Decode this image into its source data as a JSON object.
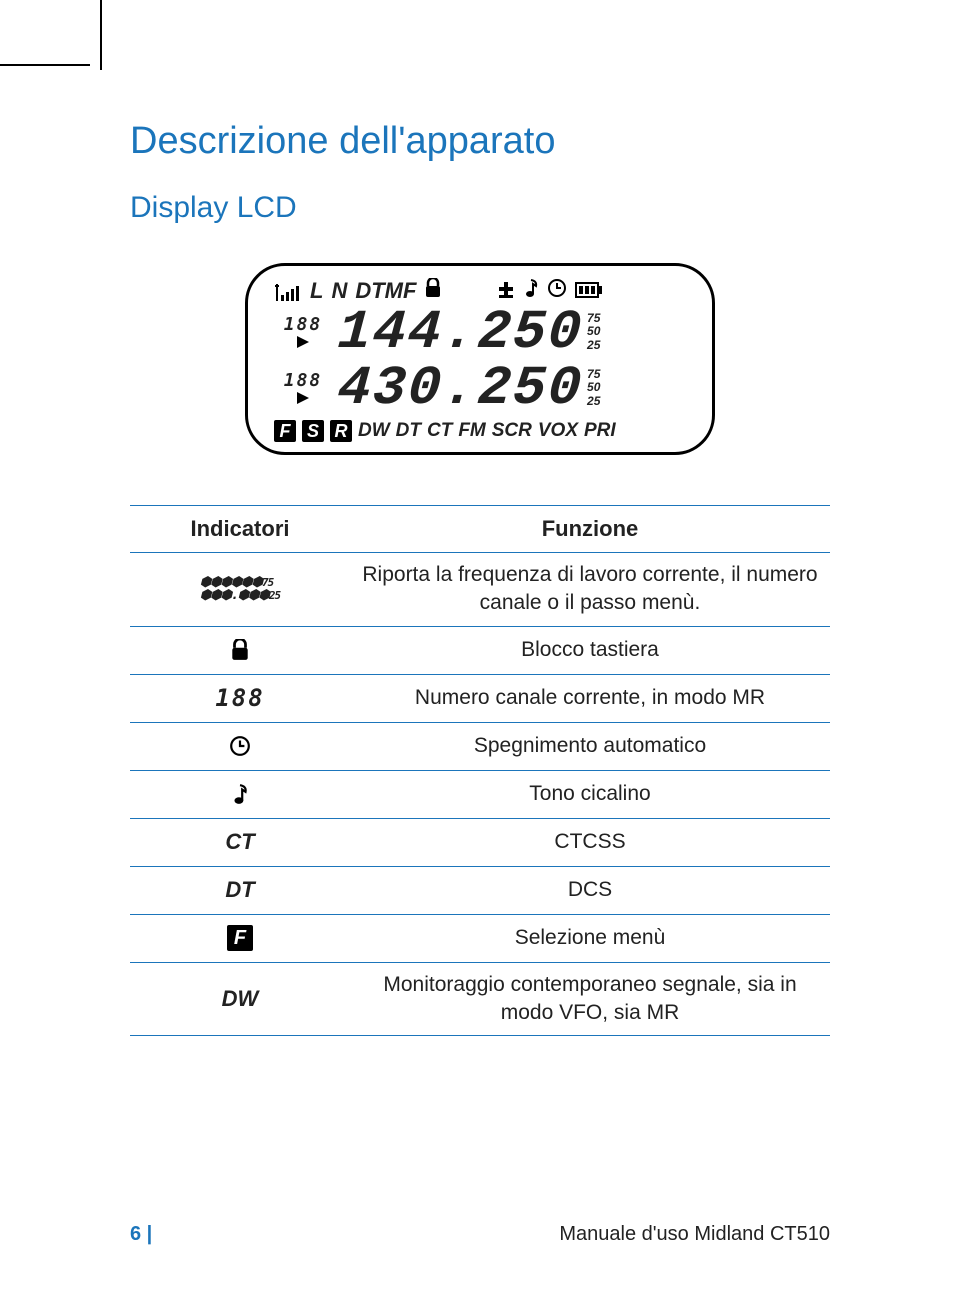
{
  "page": {
    "title": "Descrizione dell'apparato",
    "subtitle": "Display LCD",
    "number": "6 |",
    "footer": "Manuale d'uso Midland CT510"
  },
  "colors": {
    "accent": "#1b75bb",
    "text": "#222222",
    "lcd_border": "#000000",
    "background": "#ffffff"
  },
  "lcd": {
    "top_indicators": [
      "L",
      "N",
      "DTMF"
    ],
    "freq1": "144.250",
    "freq2": "430.250",
    "ch1": "188",
    "ch2": "188",
    "side_values": [
      "75",
      "50",
      "25"
    ],
    "bottom_boxes": [
      "F",
      "S",
      "R"
    ],
    "bottom_text": [
      "DW",
      "DT",
      "CT",
      "FM",
      "SCR",
      "VOX",
      "PRI"
    ]
  },
  "table": {
    "header_indicator": "Indicatori",
    "header_function": "Funzione",
    "rows": [
      {
        "indicator_type": "full-segments",
        "function": "Riporta la frequenza di lavoro corrente, il numero canale o il passo menù."
      },
      {
        "indicator_type": "lock",
        "function": "Blocco tastiera"
      },
      {
        "indicator_type": "ch188",
        "indicator_text": "188",
        "function": "Numero canale corrente, in modo MR"
      },
      {
        "indicator_type": "clock",
        "function": "Spegnimento automatico"
      },
      {
        "indicator_type": "note",
        "function": "Tono cicalino"
      },
      {
        "indicator_type": "text",
        "indicator_text": "CT",
        "function": "CTCSS"
      },
      {
        "indicator_type": "text",
        "indicator_text": "DT",
        "function": "DCS"
      },
      {
        "indicator_type": "fbox",
        "indicator_text": "F",
        "function": "Selezione menù"
      },
      {
        "indicator_type": "text",
        "indicator_text": "DW",
        "function": "Monitoraggio contemporaneo segnale, sia in modo VFO, sia MR"
      }
    ]
  }
}
